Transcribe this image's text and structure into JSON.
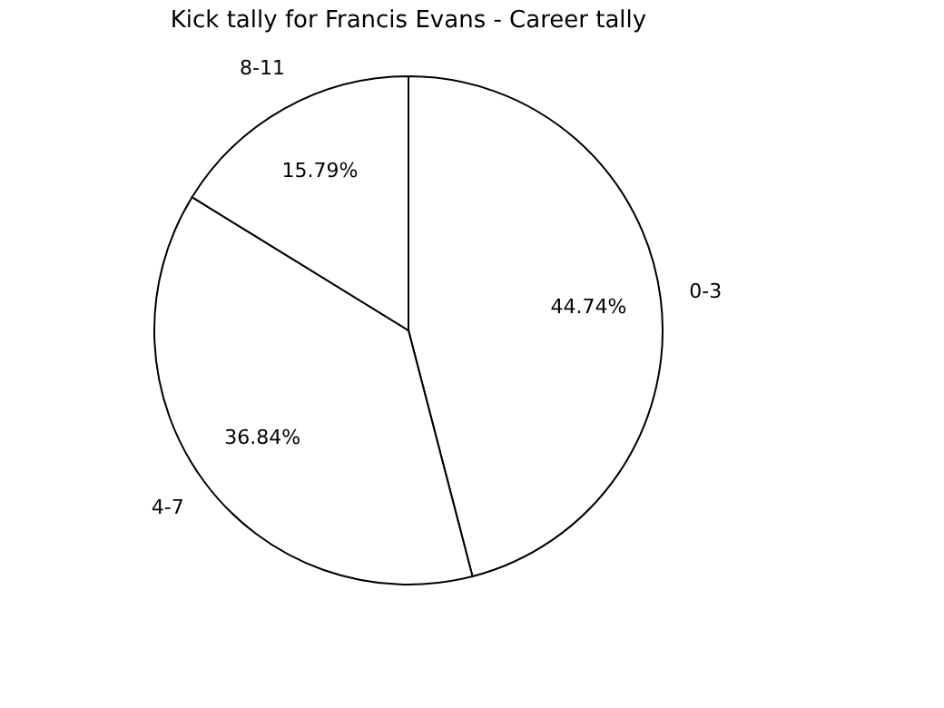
{
  "chart_data": {
    "type": "pie",
    "title": "Kick tally for Francis Evans - Career tally",
    "categories": [
      "0-3",
      "4-7",
      "8-11"
    ],
    "values": [
      44.74,
      36.84,
      15.79
    ],
    "value_labels": [
      "44.74%",
      "36.84%",
      "15.79%"
    ]
  }
}
